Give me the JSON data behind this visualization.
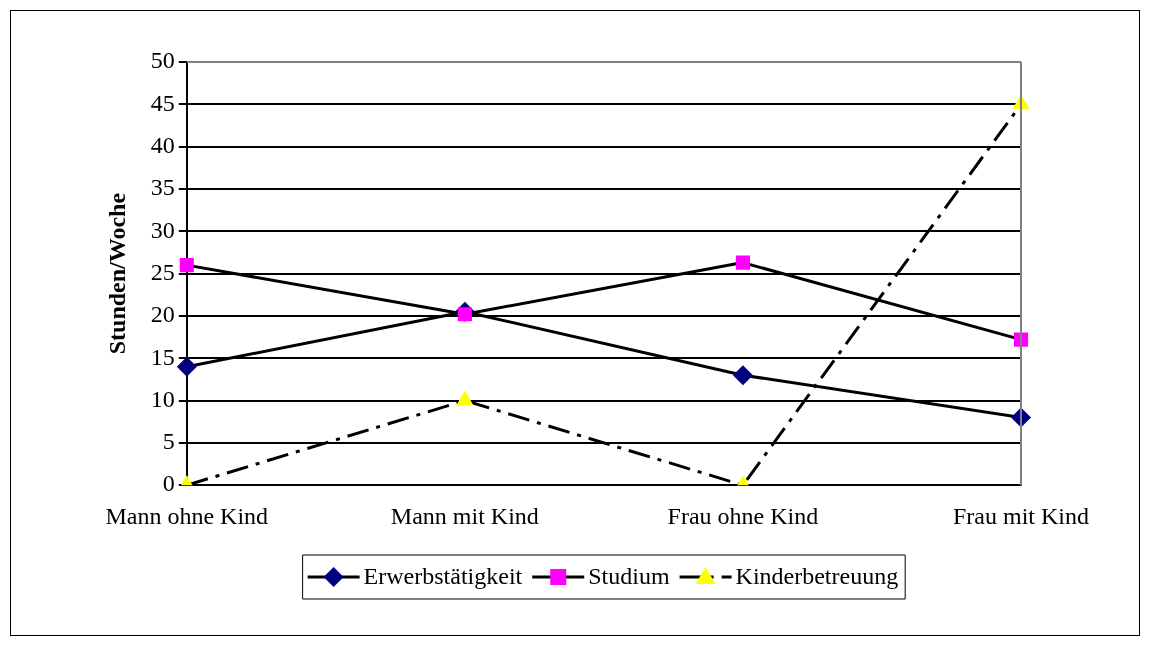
{
  "chart_data": {
    "type": "line",
    "ylabel": "Stunden/Woche",
    "categories": [
      "Mann ohne Kind",
      "Mann mit Kind",
      "Frau ohne Kind",
      "Frau mit Kind"
    ],
    "series": [
      {
        "name": "Erwerbstätigkeit",
        "color": "#000080",
        "marker": "diamond",
        "line_style": "solid",
        "values": [
          14,
          20.5,
          13,
          8
        ]
      },
      {
        "name": "Studium",
        "color": "#ff00ff",
        "marker": "square",
        "line_style": "solid",
        "values": [
          26,
          20.2,
          26.3,
          17.2
        ]
      },
      {
        "name": "Kinderbetreuung",
        "color": "#ffff00",
        "marker": "triangle",
        "line_style": "dashed",
        "values": [
          0,
          10,
          0,
          45
        ]
      }
    ],
    "ylim": [
      0,
      50
    ],
    "yticks": [
      0,
      5,
      10,
      15,
      20,
      25,
      30,
      35,
      40,
      45,
      50
    ],
    "grid": "y",
    "legend": "bottom"
  }
}
